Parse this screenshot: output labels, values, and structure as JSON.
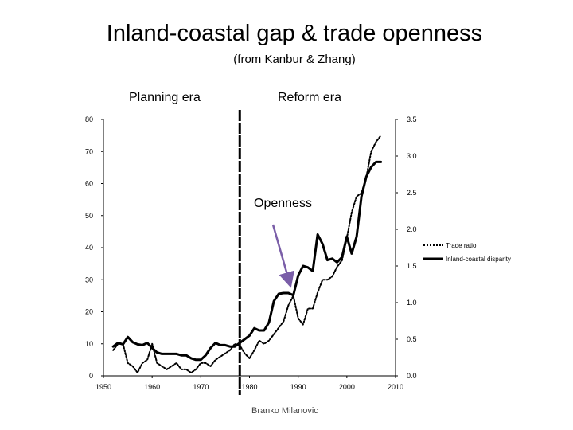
{
  "title": "Inland-coastal gap & trade openness",
  "subtitle": "(from Kanbur & Zhang)",
  "eras": {
    "planning": "Planning era",
    "reform": "Reform era"
  },
  "footer": "Branko Milanovic",
  "chart_data": {
    "type": "line",
    "annotation": "Openness",
    "divider_year": 1978,
    "x_axis": {
      "ticks": [
        1950,
        1960,
        1970,
        1980,
        1990,
        2000,
        2010
      ],
      "range": [
        1950,
        2010
      ]
    },
    "y_left": {
      "ticks": [
        0,
        10,
        20,
        30,
        40,
        50,
        60,
        70,
        80
      ],
      "range": [
        0,
        80
      ]
    },
    "y_right": {
      "ticks": [
        "0.0",
        "0.5",
        "1.0",
        "1.5",
        "2.0",
        "2.5",
        "3.0",
        "3.5"
      ],
      "range": [
        0,
        3.5
      ]
    },
    "legend_position": "right",
    "series": [
      {
        "name": "Trade ratio",
        "axis": "left",
        "style": "dashed",
        "x": [
          1952,
          1953,
          1954,
          1955,
          1956,
          1957,
          1958,
          1959,
          1960,
          1961,
          1962,
          1963,
          1964,
          1965,
          1966,
          1967,
          1968,
          1969,
          1970,
          1971,
          1972,
          1973,
          1974,
          1975,
          1976,
          1977,
          1978,
          1979,
          1980,
          1981,
          1982,
          1983,
          1984,
          1985,
          1986,
          1987,
          1988,
          1989,
          1990,
          1991,
          1992,
          1993,
          1994,
          1995,
          1996,
          1997,
          1998,
          1999,
          2000,
          2001,
          2002,
          2003,
          2004,
          2005,
          2006,
          2007
        ],
        "y": [
          8,
          10,
          10,
          4,
          3,
          1,
          4,
          5,
          10,
          4,
          3,
          2,
          3,
          4,
          2,
          2,
          1,
          2,
          4,
          4,
          3,
          5,
          6,
          7,
          8,
          10,
          9.5,
          7,
          5.5,
          8,
          11,
          10,
          11,
          13,
          15,
          17,
          22,
          25,
          18,
          16,
          21,
          21,
          26,
          30,
          30,
          31,
          34,
          36,
          43,
          51,
          56,
          57,
          62,
          70,
          73,
          75
        ]
      },
      {
        "name": "Inland-coastal disparity",
        "axis": "right",
        "style": "solid",
        "x": [
          1952,
          1953,
          1954,
          1955,
          1956,
          1957,
          1958,
          1959,
          1960,
          1961,
          1962,
          1963,
          1964,
          1965,
          1966,
          1967,
          1968,
          1969,
          1970,
          1971,
          1972,
          1973,
          1974,
          1975,
          1976,
          1977,
          1978,
          1979,
          1980,
          1981,
          1982,
          1983,
          1984,
          1985,
          1986,
          1987,
          1988,
          1989,
          1990,
          1991,
          1992,
          1993,
          1994,
          1995,
          1996,
          1997,
          1998,
          1999,
          2000,
          2001,
          2002,
          2003,
          2004,
          2005,
          2006,
          2007
        ],
        "y": [
          0.4,
          0.45,
          0.43,
          0.53,
          0.46,
          0.43,
          0.42,
          0.45,
          0.38,
          0.32,
          0.3,
          0.3,
          0.3,
          0.3,
          0.28,
          0.28,
          0.24,
          0.22,
          0.22,
          0.28,
          0.38,
          0.45,
          0.42,
          0.42,
          0.4,
          0.4,
          0.45,
          0.5,
          0.55,
          0.65,
          0.62,
          0.62,
          0.73,
          1.02,
          1.12,
          1.13,
          1.13,
          1.1,
          1.37,
          1.5,
          1.48,
          1.43,
          1.93,
          1.8,
          1.58,
          1.6,
          1.55,
          1.62,
          1.9,
          1.67,
          1.9,
          2.45,
          2.72,
          2.85,
          2.92,
          2.92
        ]
      }
    ]
  }
}
